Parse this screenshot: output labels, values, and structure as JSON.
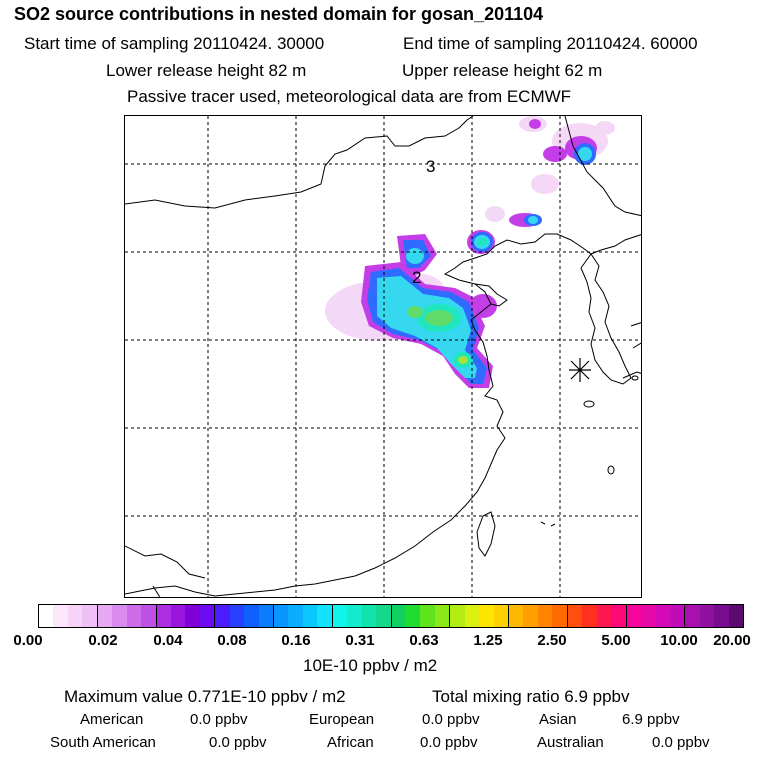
{
  "header": {
    "title": "SO2 source contributions in nested domain for gosan_201104",
    "start_time": "Start time of sampling 20110424. 30000",
    "end_time": "End time of sampling 20110424. 60000",
    "lower_release": "Lower release height   82 m",
    "upper_release": "Upper release height   62 m",
    "tracer_note": "Passive tracer used, meteorological data are from ECMWF"
  },
  "map": {
    "grid_labels": [
      "3",
      "2"
    ],
    "colors": {
      "coast": "#000000",
      "grid": "#000000",
      "light_pink": "#f3d4f6",
      "magenta": "#c43ee8",
      "purple": "#9a1fe0",
      "blue": "#2f6bff",
      "cyan": "#35d8ef",
      "teal": "#20e6c0",
      "green": "#5fdc6a",
      "yellow_green": "#a6e23a"
    }
  },
  "legend": {
    "tick_labels": [
      "0.00",
      "0.02",
      "0.04",
      "0.08",
      "0.16",
      "0.31",
      "0.63",
      "1.25",
      "2.50",
      "5.00",
      "10.00",
      "20.00"
    ],
    "unit": "10E-10 ppbv / m2",
    "colors": [
      "#ffffff",
      "#fbe8fc",
      "#f5d4f8",
      "#efbff5",
      "#e8a7f2",
      "#d98bee",
      "#cc6ce9",
      "#bf50e6",
      "#ae2ee2",
      "#9a15dd",
      "#8200d8",
      "#6b0cf2",
      "#4a1cff",
      "#2a40ff",
      "#1060ff",
      "#0a7eff",
      "#0a96ff",
      "#0aaeff",
      "#0ac8ff",
      "#10e2ff",
      "#12f4ec",
      "#12eccd",
      "#12e3ad",
      "#14d98a",
      "#10d061",
      "#20dc30",
      "#5ee41e",
      "#8ae818",
      "#b3ec14",
      "#d9f010",
      "#ffe600",
      "#ffd000",
      "#ffb800",
      "#ffa000",
      "#ff8400",
      "#ff6a00",
      "#ff4e10",
      "#ff3020",
      "#ff1850",
      "#ff0878",
      "#f8069c",
      "#e808a8",
      "#d40ab4",
      "#c00cb8",
      "#a810b0",
      "#9010a0",
      "#780c8c",
      "#5c0a70"
    ]
  },
  "summary": {
    "max_value": "Maximum value  0.771E-10 ppbv / m2",
    "total_mixing": "Total mixing ratio       6.9 ppbv",
    "american": "American",
    "american_val": "0.0 ppbv",
    "european": "European",
    "european_val": "0.0 ppbv",
    "asian": "Asian",
    "asian_val": "6.9 ppbv",
    "south_american": "South American",
    "south_american_val": "0.0 ppbv",
    "african": "African",
    "african_val": "0.0 ppbv",
    "australian": "Australian",
    "australian_val": "0.0 ppbv"
  }
}
